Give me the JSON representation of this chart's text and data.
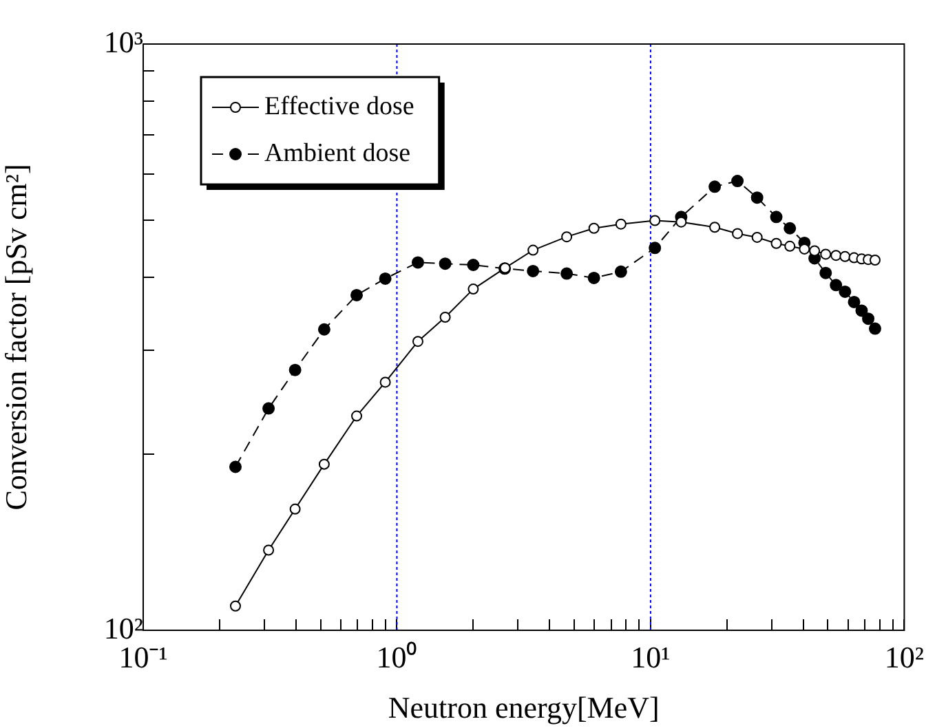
{
  "chart_data": {
    "type": "line",
    "xlabel": "Neutron energy[MeV]",
    "ylabel": "Conversion factor [pSv cm²]",
    "log": "xy",
    "legend": "top left",
    "marker": "circle",
    "grid": false,
    "xlim": [
      0.1,
      100
    ],
    "ylim": [
      100,
      1000
    ],
    "xticks": [
      {
        "value": 0.1,
        "label": "10⁻¹"
      },
      {
        "value": 0.2,
        "label": null
      },
      {
        "value": 0.3,
        "label": null
      },
      {
        "value": 0.4,
        "label": null
      },
      {
        "value": 0.5,
        "label": null
      },
      {
        "value": 0.6,
        "label": null
      },
      {
        "value": 0.7,
        "label": null
      },
      {
        "value": 0.8,
        "label": null
      },
      {
        "value": 0.9,
        "label": null
      },
      {
        "value": 1,
        "label": "10⁰"
      },
      {
        "value": 2,
        "label": null
      },
      {
        "value": 3,
        "label": null
      },
      {
        "value": 4,
        "label": null
      },
      {
        "value": 5,
        "label": null
      },
      {
        "value": 6,
        "label": null
      },
      {
        "value": 7,
        "label": null
      },
      {
        "value": 8,
        "label": null
      },
      {
        "value": 9,
        "label": null
      },
      {
        "value": 10,
        "label": "10¹"
      },
      {
        "value": 20,
        "label": null
      },
      {
        "value": 30,
        "label": null
      },
      {
        "value": 40,
        "label": null
      },
      {
        "value": 50,
        "label": null
      },
      {
        "value": 60,
        "label": null
      },
      {
        "value": 70,
        "label": null
      },
      {
        "value": 80,
        "label": null
      },
      {
        "value": 90,
        "label": null
      },
      {
        "value": 100,
        "label": "10²"
      }
    ],
    "yticks": [
      {
        "value": 100,
        "label": "10²"
      },
      {
        "value": 200,
        "label": null
      },
      {
        "value": 300,
        "label": null
      },
      {
        "value": 400,
        "label": null
      },
      {
        "value": 500,
        "label": null
      },
      {
        "value": 600,
        "label": null
      },
      {
        "value": 700,
        "label": null
      },
      {
        "value": 800,
        "label": null
      },
      {
        "value": 900,
        "label": null
      },
      {
        "value": 1000,
        "label": "10³"
      }
    ],
    "ref_lines": [
      {
        "axis": "x",
        "value": 1,
        "color": "#0000ff",
        "line_style": "dotted"
      },
      {
        "axis": "x",
        "value": 10,
        "color": "#0000ff",
        "line_style": "dotted"
      }
    ],
    "series": [
      {
        "name": "Effective dose",
        "color": "#000000",
        "line_style": "solid",
        "x": [
          0.231,
          0.312,
          0.397,
          0.517,
          0.694,
          0.9,
          1.21,
          1.55,
          2.0,
          2.67,
          3.44,
          4.67,
          5.98,
          7.64,
          10.4,
          13.2,
          17.9,
          22,
          26.3,
          31.3,
          35.4,
          40.4,
          44.3,
          49,
          53.8,
          58.4,
          63.4,
          67.9,
          72.1,
          76.7
        ],
        "values": [
          110,
          137,
          161,
          192,
          232,
          265,
          311,
          342,
          382,
          415,
          445,
          469,
          485,
          493,
          500,
          497,
          487,
          475,
          468,
          457,
          452,
          447,
          444,
          438,
          436,
          434,
          432,
          430,
          429,
          428
        ]
      },
      {
        "name": "Ambient dose",
        "color": "#000000",
        "line_style": "dashed",
        "x": [
          0.231,
          0.312,
          0.397,
          0.517,
          0.694,
          0.9,
          1.21,
          1.55,
          2.0,
          2.66,
          3.44,
          4.67,
          5.98,
          7.64,
          10.4,
          13.2,
          17.9,
          22,
          26.3,
          31.3,
          35.4,
          40.4,
          44.3,
          49,
          53.8,
          58.4,
          63.4,
          67.9,
          72.1,
          76.7
        ],
        "values": [
          190,
          239,
          278,
          326,
          373,
          398,
          424,
          422,
          420,
          414,
          410,
          406,
          399,
          409,
          449,
          507,
          571,
          584,
          547,
          507,
          485,
          458,
          431,
          407,
          388,
          378,
          363,
          351,
          340,
          327
        ]
      }
    ]
  }
}
